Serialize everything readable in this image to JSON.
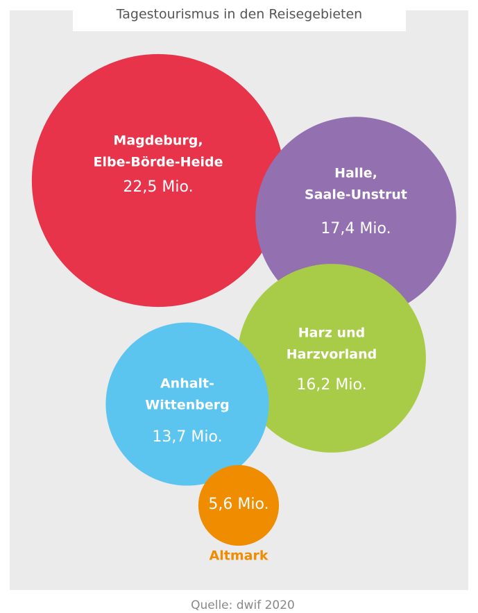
{
  "chart_data": {
    "type": "bubble",
    "title": "Tagestourismus in den Reisegebieten",
    "source": "Quelle: dwif 2020",
    "categories": [
      [
        "Magdeburg,",
        "Elbe-Börde-Heide"
      ],
      [
        "Halle,",
        "Saale-Unstrut"
      ],
      [
        "Harz und",
        "Harzvorland"
      ],
      [
        "Anhalt-",
        "Wittenberg"
      ],
      [
        "Altmark"
      ]
    ],
    "values": [
      22.5,
      17.4,
      16.2,
      13.7,
      5.6
    ],
    "value_labels": [
      "22,5 Mio.",
      "17,4 Mio.",
      "16,2 Mio.",
      "13,7 Mio.",
      "5,6 Mio."
    ],
    "colors": [
      "#e8344b",
      "#9370b0",
      "#a9cc48",
      "#5bc4ef",
      "#f08c00"
    ]
  }
}
